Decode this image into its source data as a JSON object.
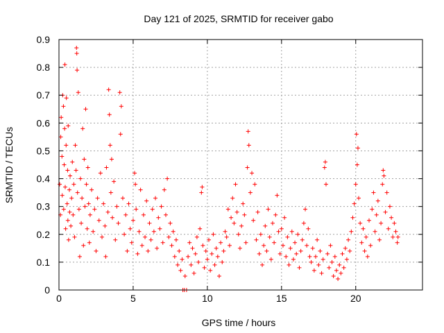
{
  "chart_data": {
    "type": "scatter",
    "title": "Day 121 of 2025, SRMTID for receiver gabo",
    "xlabel": "GPS time / hours",
    "ylabel": "SRMTID / TECUs",
    "xlim": [
      0,
      24.5
    ],
    "ylim": [
      0,
      0.9
    ],
    "xticks": [
      0,
      5,
      10,
      15,
      20
    ],
    "xtick_labels": [
      "0",
      "5",
      "10",
      "15",
      "20"
    ],
    "yticks": [
      0,
      0.1,
      0.2,
      0.3,
      0.4,
      0.5,
      0.6,
      0.7,
      0.8,
      0.9
    ],
    "ytick_labels": [
      "0",
      "0.1",
      "0.2",
      "0.3",
      "0.4",
      "0.5",
      "0.6",
      "0.7",
      "0.8",
      "0.9"
    ],
    "grid": true,
    "marker": "+",
    "color": "#ff0000",
    "series": [
      {
        "name": "SRMTID",
        "points": [
          [
            0.05,
            0.38
          ],
          [
            0.1,
            0.27
          ],
          [
            0.12,
            0.55
          ],
          [
            0.15,
            0.62
          ],
          [
            0.2,
            0.48
          ],
          [
            0.22,
            0.34
          ],
          [
            0.25,
            0.7
          ],
          [
            0.3,
            0.66
          ],
          [
            0.32,
            0.29
          ],
          [
            0.35,
            0.45
          ],
          [
            0.38,
            0.58
          ],
          [
            0.4,
            0.81
          ],
          [
            0.42,
            0.37
          ],
          [
            0.45,
            0.22
          ],
          [
            0.48,
            0.52
          ],
          [
            0.5,
            0.69
          ],
          [
            0.55,
            0.31
          ],
          [
            0.58,
            0.43
          ],
          [
            0.6,
            0.25
          ],
          [
            0.62,
            0.59
          ],
          [
            0.65,
            0.18
          ],
          [
            0.7,
            0.36
          ],
          [
            0.72,
            0.28
          ],
          [
            0.75,
            0.41
          ],
          [
            0.8,
            0.23
          ],
          [
            0.85,
            0.33
          ],
          [
            0.9,
            0.46
          ],
          [
            0.95,
            0.27
          ],
          [
            1.0,
            0.38
          ],
          [
            1.05,
            0.19
          ],
          [
            1.1,
            0.52
          ],
          [
            1.15,
            0.43
          ],
          [
            1.18,
            0.87
          ],
          [
            1.2,
            0.85
          ],
          [
            1.22,
            0.79
          ],
          [
            1.25,
            0.35
          ],
          [
            1.3,
            0.71
          ],
          [
            1.35,
            0.29
          ],
          [
            1.4,
            0.12
          ],
          [
            1.45,
            0.4
          ],
          [
            1.5,
            0.24
          ],
          [
            1.55,
            0.33
          ],
          [
            1.6,
            0.58
          ],
          [
            1.65,
            0.16
          ],
          [
            1.7,
            0.47
          ],
          [
            1.75,
            0.3
          ],
          [
            1.8,
            0.65
          ],
          [
            1.85,
            0.38
          ],
          [
            1.9,
            0.22
          ],
          [
            1.95,
            0.44
          ],
          [
            2.0,
            0.31
          ],
          [
            2.05,
            0.17
          ],
          [
            2.1,
            0.27
          ],
          [
            2.2,
            0.36
          ],
          [
            2.3,
            0.21
          ],
          [
            2.4,
            0.29
          ],
          [
            2.5,
            0.14
          ],
          [
            2.6,
            0.33
          ],
          [
            2.7,
            0.25
          ],
          [
            2.8,
            0.42
          ],
          [
            2.9,
            0.19
          ],
          [
            3.0,
            0.31
          ],
          [
            3.1,
            0.23
          ],
          [
            3.15,
            0.12
          ],
          [
            3.2,
            0.44
          ],
          [
            3.3,
            0.28
          ],
          [
            3.35,
            0.72
          ],
          [
            3.4,
            0.63
          ],
          [
            3.45,
            0.52
          ],
          [
            3.5,
            0.35
          ],
          [
            3.55,
            0.47
          ],
          [
            3.6,
            0.26
          ],
          [
            3.7,
            0.39
          ],
          [
            3.8,
            0.18
          ],
          [
            3.9,
            0.3
          ],
          [
            4.0,
            0.24
          ],
          [
            4.1,
            0.71
          ],
          [
            4.15,
            0.56
          ],
          [
            4.2,
            0.66
          ],
          [
            4.3,
            0.33
          ],
          [
            4.4,
            0.2
          ],
          [
            4.5,
            0.27
          ],
          [
            4.6,
            0.14
          ],
          [
            4.7,
            0.31
          ],
          [
            4.8,
            0.22
          ],
          [
            4.9,
            0.17
          ],
          [
            5.0,
            0.25
          ],
          [
            5.1,
            0.42
          ],
          [
            5.15,
            0.38
          ],
          [
            5.2,
            0.29
          ],
          [
            5.3,
            0.13
          ],
          [
            5.4,
            0.21
          ],
          [
            5.5,
            0.36
          ],
          [
            5.6,
            0.16
          ],
          [
            5.7,
            0.27
          ],
          [
            5.8,
            0.19
          ],
          [
            5.9,
            0.32
          ],
          [
            6.0,
            0.14
          ],
          [
            6.1,
            0.24
          ],
          [
            6.2,
            0.18
          ],
          [
            6.3,
            0.29
          ],
          [
            6.4,
            0.21
          ],
          [
            6.5,
            0.33
          ],
          [
            6.6,
            0.15
          ],
          [
            6.7,
            0.26
          ],
          [
            6.8,
            0.22
          ],
          [
            6.9,
            0.3
          ],
          [
            7.0,
            0.17
          ],
          [
            7.1,
            0.36
          ],
          [
            7.2,
            0.27
          ],
          [
            7.3,
            0.4
          ],
          [
            7.4,
            0.19
          ],
          [
            7.5,
            0.24
          ],
          [
            7.6,
            0.16
          ],
          [
            7.7,
            0.21
          ],
          [
            7.8,
            0.12
          ],
          [
            7.9,
            0.18
          ],
          [
            8.0,
            0.09
          ],
          [
            8.1,
            0.14
          ],
          [
            8.2,
            0.07
          ],
          [
            8.3,
            0.11
          ],
          [
            8.35,
            0.0
          ],
          [
            8.45,
            0.0
          ],
          [
            8.5,
            0.05
          ],
          [
            8.6,
            0.0
          ],
          [
            8.7,
            0.12
          ],
          [
            8.8,
            0.17
          ],
          [
            8.9,
            0.09
          ],
          [
            9.0,
            0.15
          ],
          [
            9.1,
            0.06
          ],
          [
            9.2,
            0.13
          ],
          [
            9.3,
            0.19
          ],
          [
            9.4,
            0.1
          ],
          [
            9.5,
            0.22
          ],
          [
            9.6,
            0.35
          ],
          [
            9.65,
            0.37
          ],
          [
            9.7,
            0.16
          ],
          [
            9.8,
            0.08
          ],
          [
            9.9,
            0.14
          ],
          [
            10.0,
            0.11
          ],
          [
            10.1,
            0.18
          ],
          [
            10.2,
            0.07
          ],
          [
            10.3,
            0.13
          ],
          [
            10.4,
            0.2
          ],
          [
            10.5,
            0.09
          ],
          [
            10.6,
            0.15
          ],
          [
            10.7,
            0.12
          ],
          [
            10.8,
            0.05
          ],
          [
            10.9,
            0.17
          ],
          [
            11.0,
            0.1
          ],
          [
            11.1,
            0.14
          ],
          [
            11.2,
            0.21
          ],
          [
            11.3,
            0.19
          ],
          [
            11.4,
            0.29
          ],
          [
            11.5,
            0.16
          ],
          [
            11.6,
            0.26
          ],
          [
            11.7,
            0.33
          ],
          [
            11.8,
            0.24
          ],
          [
            11.9,
            0.38
          ],
          [
            12.0,
            0.28
          ],
          [
            12.1,
            0.2
          ],
          [
            12.2,
            0.15
          ],
          [
            12.3,
            0.23
          ],
          [
            12.4,
            0.31
          ],
          [
            12.5,
            0.27
          ],
          [
            12.6,
            0.17
          ],
          [
            12.7,
            0.44
          ],
          [
            12.75,
            0.57
          ],
          [
            12.8,
            0.52
          ],
          [
            12.9,
            0.35
          ],
          [
            13.0,
            0.42
          ],
          [
            13.1,
            0.25
          ],
          [
            13.2,
            0.38
          ],
          [
            13.3,
            0.18
          ],
          [
            13.4,
            0.28
          ],
          [
            13.5,
            0.13
          ],
          [
            13.6,
            0.2
          ],
          [
            13.7,
            0.09
          ],
          [
            13.8,
            0.16
          ],
          [
            13.9,
            0.23
          ],
          [
            14.0,
            0.14
          ],
          [
            14.1,
            0.29
          ],
          [
            14.2,
            0.19
          ],
          [
            14.3,
            0.11
          ],
          [
            14.4,
            0.24
          ],
          [
            14.5,
            0.17
          ],
          [
            14.6,
            0.27
          ],
          [
            14.7,
            0.34
          ],
          [
            14.8,
            0.21
          ],
          [
            14.9,
            0.13
          ],
          [
            15.0,
            0.22
          ],
          [
            15.1,
            0.16
          ],
          [
            15.2,
            0.26
          ],
          [
            15.3,
            0.12
          ],
          [
            15.4,
            0.19
          ],
          [
            15.5,
            0.09
          ],
          [
            15.6,
            0.15
          ],
          [
            15.7,
            0.21
          ],
          [
            15.8,
            0.11
          ],
          [
            15.9,
            0.17
          ],
          [
            16.0,
            0.13
          ],
          [
            16.1,
            0.2
          ],
          [
            16.2,
            0.08
          ],
          [
            16.3,
            0.14
          ],
          [
            16.4,
            0.18
          ],
          [
            16.5,
            0.24
          ],
          [
            16.6,
            0.29
          ],
          [
            16.7,
            0.16
          ],
          [
            16.8,
            0.22
          ],
          [
            16.9,
            0.12
          ],
          [
            17.0,
            0.1
          ],
          [
            17.1,
            0.15
          ],
          [
            17.2,
            0.07
          ],
          [
            17.3,
            0.12
          ],
          [
            17.4,
            0.18
          ],
          [
            17.5,
            0.09
          ],
          [
            17.6,
            0.14
          ],
          [
            17.7,
            0.06
          ],
          [
            17.8,
            0.11
          ],
          [
            17.9,
            0.44
          ],
          [
            17.95,
            0.46
          ],
          [
            18.0,
            0.38
          ],
          [
            18.1,
            0.13
          ],
          [
            18.2,
            0.08
          ],
          [
            18.3,
            0.16
          ],
          [
            18.4,
            0.1
          ],
          [
            18.5,
            0.05
          ],
          [
            18.6,
            0.12
          ],
          [
            18.7,
            0.07
          ],
          [
            18.8,
            0.04
          ],
          [
            18.9,
            0.09
          ],
          [
            19.0,
            0.06
          ],
          [
            19.1,
            0.13
          ],
          [
            19.2,
            0.08
          ],
          [
            19.3,
            0.15
          ],
          [
            19.4,
            0.11
          ],
          [
            19.5,
            0.18
          ],
          [
            19.6,
            0.14
          ],
          [
            19.7,
            0.21
          ],
          [
            19.8,
            0.26
          ],
          [
            19.9,
            0.31
          ],
          [
            20.0,
            0.38
          ],
          [
            20.05,
            0.56
          ],
          [
            20.1,
            0.45
          ],
          [
            20.15,
            0.51
          ],
          [
            20.2,
            0.33
          ],
          [
            20.3,
            0.24
          ],
          [
            20.4,
            0.17
          ],
          [
            20.5,
            0.22
          ],
          [
            20.6,
            0.14
          ],
          [
            20.7,
            0.19
          ],
          [
            20.8,
            0.12
          ],
          [
            20.9,
            0.25
          ],
          [
            21.0,
            0.16
          ],
          [
            21.1,
            0.29
          ],
          [
            21.2,
            0.35
          ],
          [
            21.3,
            0.21
          ],
          [
            21.4,
            0.27
          ],
          [
            21.5,
            0.32
          ],
          [
            21.6,
            0.18
          ],
          [
            21.7,
            0.24
          ],
          [
            21.8,
            0.38
          ],
          [
            21.85,
            0.43
          ],
          [
            21.9,
            0.41
          ],
          [
            22.0,
            0.28
          ],
          [
            22.1,
            0.35
          ],
          [
            22.2,
            0.22
          ],
          [
            22.3,
            0.3
          ],
          [
            22.4,
            0.26
          ],
          [
            22.5,
            0.19
          ],
          [
            22.6,
            0.24
          ],
          [
            22.7,
            0.21
          ],
          [
            22.8,
            0.17
          ],
          [
            22.85,
            0.19
          ]
        ]
      }
    ]
  }
}
